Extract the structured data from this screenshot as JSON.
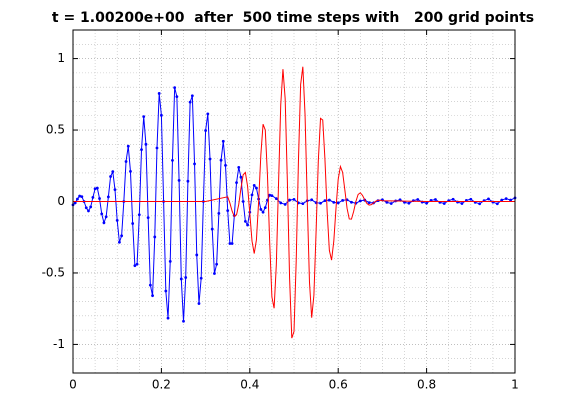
{
  "chart_data": {
    "type": "line",
    "title": "t = 1.00200e+00  after  500 time steps with   200 grid points",
    "xlim": [
      0,
      1
    ],
    "ylim": [
      -1.2,
      1.2
    ],
    "xticks": [
      0,
      0.2,
      0.4,
      0.6,
      0.8,
      1
    ],
    "yticks": [
      -1,
      -0.5,
      0,
      0.5,
      1
    ],
    "xminor": [
      0.05,
      0.1,
      0.15,
      0.25,
      0.3,
      0.35,
      0.45,
      0.5,
      0.55,
      0.65,
      0.7,
      0.75,
      0.85,
      0.9,
      0.95
    ],
    "yminor": [
      -1.1,
      -0.9,
      -0.8,
      -0.7,
      -0.6,
      -0.4,
      -0.3,
      -0.2,
      -0.1,
      0.1,
      0.2,
      0.3,
      0.4,
      0.6,
      0.7,
      0.8,
      0.9,
      1.1
    ],
    "grid": true,
    "series": [
      {
        "color": "#0000ff",
        "marker": true,
        "x": [
          0,
          0.005,
          0.01,
          0.015,
          0.02,
          0.025,
          0.03,
          0.035,
          0.04,
          0.045,
          0.05,
          0.055,
          0.06,
          0.065,
          0.07,
          0.075,
          0.08,
          0.085,
          0.09,
          0.095,
          0.1,
          0.105,
          0.11,
          0.115,
          0.12,
          0.125,
          0.13,
          0.135,
          0.14,
          0.145,
          0.15,
          0.155,
          0.16,
          0.165,
          0.17,
          0.175,
          0.18,
          0.185,
          0.19,
          0.195,
          0.2,
          0.205,
          0.21,
          0.215,
          0.22,
          0.225,
          0.23,
          0.235,
          0.24,
          0.245,
          0.25,
          0.255,
          0.26,
          0.265,
          0.27,
          0.275,
          0.28,
          0.285,
          0.29,
          0.295,
          0.3,
          0.305,
          0.31,
          0.315,
          0.32,
          0.325,
          0.33,
          0.335,
          0.34,
          0.345,
          0.35,
          0.355,
          0.36,
          0.365,
          0.37,
          0.375,
          0.38,
          0.385,
          0.39,
          0.395,
          0.4,
          0.405,
          0.41,
          0.415,
          0.42,
          0.425,
          0.43,
          0.435,
          0.44,
          0.445,
          0.45,
          0.46,
          0.47,
          0.48,
          0.49,
          0.5,
          0.51,
          0.52,
          0.53,
          0.54,
          0.55,
          0.56,
          0.57,
          0.58,
          0.59,
          0.6,
          0.61,
          0.62,
          0.63,
          0.64,
          0.65,
          0.66,
          0.67,
          0.68,
          0.69,
          0.7,
          0.71,
          0.72,
          0.73,
          0.74,
          0.75,
          0.76,
          0.77,
          0.78,
          0.79,
          0.8,
          0.81,
          0.82,
          0.83,
          0.84,
          0.85,
          0.86,
          0.87,
          0.88,
          0.89,
          0.9,
          0.91,
          0.92,
          0.93,
          0.94,
          0.95,
          0.96,
          0.97,
          0.98,
          0.99,
          1
        ],
        "values": [
          -0.024,
          -0.01,
          0.017,
          0.038,
          0.034,
          0,
          -0.044,
          -0.066,
          -0.038,
          0.029,
          0.089,
          0.094,
          0.021,
          -0.087,
          -0.149,
          -0.107,
          0.032,
          0.175,
          0.209,
          0.083,
          -0.132,
          -0.285,
          -0.24,
          0,
          0.28,
          0.387,
          0.211,
          -0.154,
          -0.449,
          -0.439,
          -0.093,
          0.363,
          0.594,
          0.4,
          -0.113,
          -0.585,
          -0.659,
          -0.248,
          0.374,
          0.756,
          0.603,
          0,
          -0.626,
          -0.816,
          -0.419,
          0.288,
          0.797,
          0.734,
          0.148,
          -0.542,
          -0.838,
          -0.532,
          0.142,
          0.695,
          0.74,
          0.263,
          -0.374,
          -0.714,
          -0.537,
          0,
          0.497,
          0.613,
          0.297,
          -0.193,
          -0.504,
          -0.439,
          -0.083,
          0.289,
          0.421,
          0.253,
          -0.064,
          -0.294,
          -0.294,
          -0.099,
          0.132,
          0.239,
          0.17,
          0,
          -0.139,
          -0.164,
          -0.075,
          0.046,
          0.113,
          0.094,
          0.017,
          -0.055,
          -0.075,
          -0.043,
          0.01,
          0.044,
          0.041,
          0.02,
          -0.01,
          -0.02,
          0.01,
          0.015,
          -0.01,
          -0.015,
          0.005,
          0.012,
          -0.008,
          -0.012,
          0.006,
          0.01,
          -0.006,
          -0.01,
          0.008,
          0.012,
          -0.005,
          -0.012,
          0.004,
          0.01,
          -0.008,
          -0.01,
          0.006,
          0.012,
          -0.006,
          -0.014,
          0.004,
          0.012,
          -0.006,
          -0.012,
          0.006,
          0.014,
          -0.004,
          -0.012,
          0.008,
          0.014,
          -0.006,
          -0.014,
          0.006,
          0.016,
          -0.004,
          -0.014,
          0.008,
          0.016,
          -0.006,
          -0.016,
          0.006,
          0.018,
          -0.004,
          -0.016,
          0.01,
          0.02,
          0.01,
          0.025
        ]
      },
      {
        "color": "#ff0000",
        "marker": false,
        "x": [
          0,
          0.1,
          0.2,
          0.3,
          0.35,
          0.355,
          0.36,
          0.365,
          0.37,
          0.375,
          0.38,
          0.385,
          0.39,
          0.395,
          0.4,
          0.405,
          0.41,
          0.415,
          0.42,
          0.425,
          0.43,
          0.435,
          0.44,
          0.445,
          0.45,
          0.455,
          0.46,
          0.465,
          0.47,
          0.475,
          0.48,
          0.485,
          0.49,
          0.495,
          0.5,
          0.505,
          0.51,
          0.515,
          0.52,
          0.525,
          0.53,
          0.535,
          0.54,
          0.545,
          0.55,
          0.555,
          0.56,
          0.565,
          0.57,
          0.575,
          0.58,
          0.585,
          0.59,
          0.595,
          0.6,
          0.605,
          0.61,
          0.615,
          0.62,
          0.625,
          0.63,
          0.635,
          0.64,
          0.645,
          0.65,
          0.655,
          0.66,
          0.665,
          0.67,
          0.675,
          0.68,
          0.685,
          0.69,
          0.695,
          0.7,
          0.8,
          0.9,
          1
        ],
        "values": [
          0,
          0,
          0,
          0,
          0.033,
          -0.011,
          -0.067,
          -0.105,
          -0.093,
          -0.02,
          0.092,
          0.187,
          0.203,
          0.106,
          -0.083,
          -0.277,
          -0.364,
          -0.268,
          0,
          0.327,
          0.541,
          0.5,
          0.18,
          -0.286,
          -0.668,
          -0.747,
          -0.443,
          0.123,
          0.677,
          0.926,
          0.72,
          0.139,
          -0.534,
          -0.956,
          -0.91,
          -0.415,
          0.278,
          0.818,
          0.943,
          0.607,
          0.002,
          -0.562,
          -0.813,
          -0.657,
          -0.208,
          0.284,
          0.582,
          0.57,
          0.296,
          -0.069,
          -0.342,
          -0.41,
          -0.279,
          -0.048,
          0.156,
          0.245,
          0.204,
          0.082,
          -0.047,
          -0.122,
          -0.123,
          -0.069,
          0,
          0.049,
          0.061,
          0.043,
          0.012,
          -0.014,
          -0.025,
          -0.022,
          -0.01,
          0.002,
          0.009,
          0.009,
          0.005,
          0,
          0,
          0
        ]
      }
    ]
  }
}
